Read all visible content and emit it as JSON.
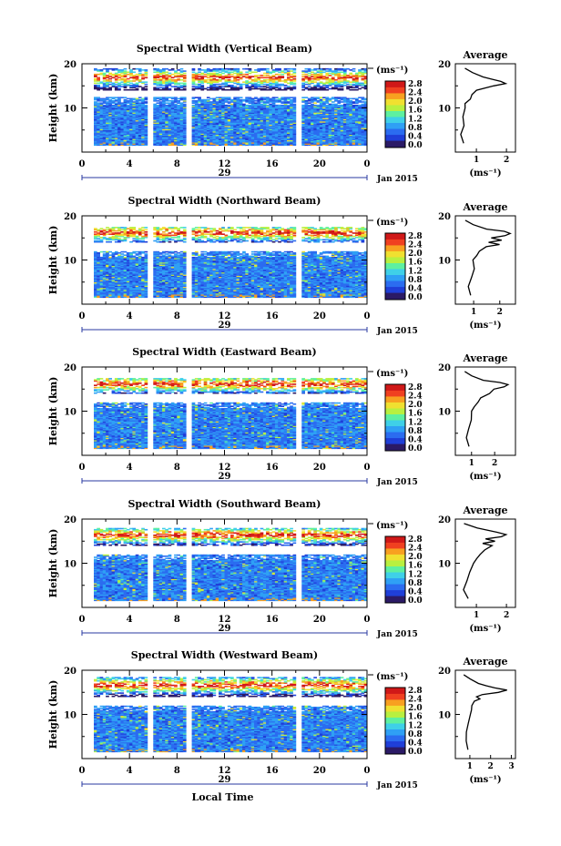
{
  "figure": {
    "date_label": "Jan 2015",
    "day_label": "29",
    "xlabel": "Local Time",
    "ylabel": "Height (km)",
    "x_ticks": [
      "0",
      "4",
      "8",
      "12",
      "16",
      "20",
      "0"
    ],
    "y_ticks": [
      "10",
      "20"
    ],
    "colorbar_unit": "(ms⁻¹)",
    "colorbar_ticks": [
      "0.0",
      "0.4",
      "0.8",
      "1.2",
      "1.6",
      "2.0",
      "2.4",
      "2.8"
    ],
    "average_title": "Average",
    "average_xlabel": "(ms⁻¹)",
    "colors": {
      "scale": [
        "#2b1a66",
        "#1f3fd8",
        "#2b6cf0",
        "#2fa0f5",
        "#3fd0e8",
        "#5ef0a0",
        "#b8f040",
        "#f0e030",
        "#f8a020",
        "#f04020",
        "#d01818"
      ],
      "gap": "#ffffff"
    }
  },
  "chart_data": [
    {
      "type": "heatmap",
      "title": "Spectral Width (Vertical Beam)",
      "x_range_hours": [
        0,
        24
      ],
      "y_range_km": [
        0,
        20
      ],
      "color_range": [
        0.0,
        2.8
      ],
      "data_gaps_hours": [
        [
          5.3,
          5.9
        ],
        [
          8.7,
          9.2
        ],
        [
          18.0,
          18.5
        ]
      ],
      "valid_ranges_km": [
        [
          1.5,
          12.5
        ],
        [
          14.0,
          19.0
        ]
      ],
      "average_profile": {
        "xticks": [
          "1",
          "2"
        ],
        "xlim": [
          0.3,
          2.3
        ],
        "height_km": [
          2,
          4,
          6,
          8,
          10,
          11,
          12,
          13,
          14,
          15,
          15.5,
          16,
          16.5,
          17,
          18,
          19
        ],
        "value": [
          0.55,
          0.5,
          0.6,
          0.55,
          0.65,
          0.6,
          0.8,
          0.85,
          1.0,
          1.6,
          2.0,
          1.8,
          1.5,
          1.2,
          0.9,
          0.6
        ]
      }
    },
    {
      "type": "heatmap",
      "title": "Spectral Width (Northward Beam)",
      "x_range_hours": [
        0,
        24
      ],
      "y_range_km": [
        0,
        20
      ],
      "color_range": [
        0.0,
        2.8
      ],
      "data_gaps_hours": [
        [
          5.3,
          5.9
        ],
        [
          8.7,
          9.2
        ],
        [
          18.0,
          18.5
        ]
      ],
      "valid_ranges_km": [
        [
          1.5,
          12.0
        ],
        [
          14.0,
          17.5
        ]
      ],
      "average_profile": {
        "xticks": [
          "1",
          "2"
        ],
        "xlim": [
          0.3,
          2.6
        ],
        "height_km": [
          2,
          4,
          6,
          8,
          10,
          11,
          12,
          13,
          13.5,
          14,
          14.5,
          15,
          15.5,
          16,
          16.5,
          17,
          18,
          19
        ],
        "value": [
          0.9,
          0.8,
          0.9,
          1.0,
          1.0,
          1.1,
          1.2,
          1.5,
          2.0,
          1.6,
          2.1,
          1.7,
          2.2,
          2.4,
          2.2,
          1.5,
          1.0,
          0.7
        ]
      }
    },
    {
      "type": "heatmap",
      "title": "Spectral Width (Eastward Beam)",
      "x_range_hours": [
        0,
        24
      ],
      "y_range_km": [
        0,
        20
      ],
      "color_range": [
        0.0,
        2.8
      ],
      "data_gaps_hours": [
        [
          5.3,
          5.9
        ],
        [
          8.7,
          9.2
        ],
        [
          18.0,
          18.5
        ]
      ],
      "valid_ranges_km": [
        [
          1.5,
          12.0
        ],
        [
          14.0,
          17.5
        ]
      ],
      "average_profile": {
        "xticks": [
          "1",
          "2"
        ],
        "xlim": [
          0.3,
          2.9
        ],
        "height_km": [
          2,
          4,
          6,
          8,
          10,
          11,
          12,
          13,
          14,
          15,
          15.5,
          16,
          16.5,
          17,
          18,
          19
        ],
        "value": [
          0.9,
          0.8,
          0.9,
          1.0,
          1.0,
          1.1,
          1.3,
          1.4,
          1.8,
          2.0,
          2.4,
          2.6,
          2.2,
          1.5,
          1.0,
          0.7
        ]
      }
    },
    {
      "type": "heatmap",
      "title": "Spectral Width (Southward Beam)",
      "x_range_hours": [
        0,
        24
      ],
      "y_range_km": [
        0,
        20
      ],
      "color_range": [
        0.0,
        2.8
      ],
      "data_gaps_hours": [
        [
          5.3,
          5.9
        ],
        [
          8.7,
          9.2
        ],
        [
          18.0,
          18.5
        ]
      ],
      "valid_ranges_km": [
        [
          1.5,
          12.0
        ],
        [
          14.0,
          18.0
        ]
      ],
      "average_profile": {
        "xticks": [
          "1",
          "2"
        ],
        "xlim": [
          0.3,
          2.3
        ],
        "height_km": [
          2,
          4,
          6,
          8,
          10,
          11,
          12,
          13,
          14,
          14.5,
          15,
          15.5,
          16,
          16.5,
          17,
          18,
          19
        ],
        "value": [
          0.7,
          0.6,
          0.7,
          0.8,
          0.9,
          1.0,
          1.1,
          1.3,
          1.5,
          1.2,
          1.6,
          1.3,
          1.8,
          2.0,
          1.7,
          1.0,
          0.6
        ]
      }
    },
    {
      "type": "heatmap",
      "title": "Spectral Width (Westward Beam)",
      "x_range_hours": [
        0,
        24
      ],
      "y_range_km": [
        0,
        20
      ],
      "color_range": [
        0.0,
        2.8
      ],
      "data_gaps_hours": [
        [
          5.3,
          5.9
        ],
        [
          8.7,
          9.2
        ],
        [
          18.0,
          18.5
        ]
      ],
      "valid_ranges_km": [
        [
          1.5,
          12.0
        ],
        [
          14.0,
          18.5
        ]
      ],
      "average_profile": {
        "xticks": [
          "1",
          "2",
          "3"
        ],
        "xlim": [
          0.3,
          3.2
        ],
        "height_km": [
          2,
          4,
          6,
          8,
          10,
          11,
          12,
          13,
          13.5,
          14,
          14.5,
          15,
          15.5,
          16,
          16.5,
          17,
          18,
          19
        ],
        "value": [
          0.9,
          0.8,
          0.85,
          0.9,
          1.0,
          1.1,
          1.1,
          1.2,
          1.5,
          1.3,
          1.6,
          2.4,
          2.8,
          2.2,
          1.8,
          1.4,
          1.0,
          0.7
        ]
      }
    }
  ]
}
